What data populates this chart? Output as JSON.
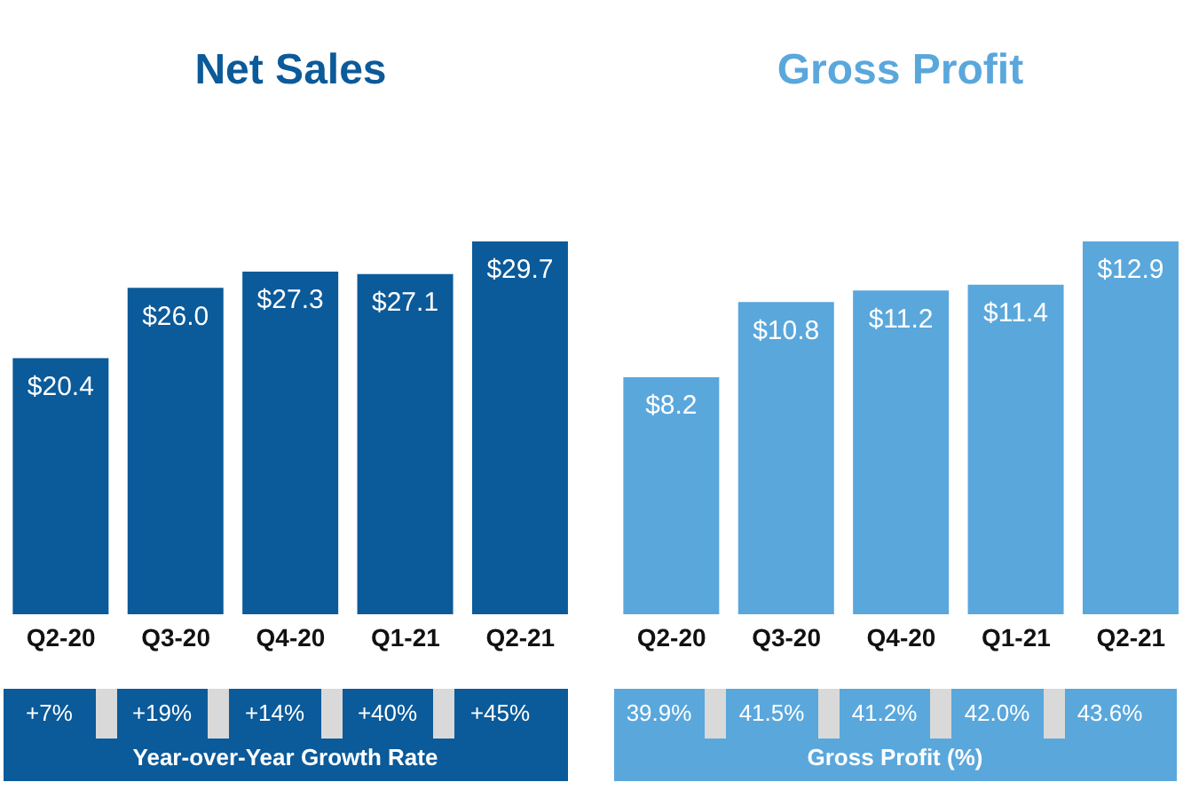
{
  "chart_data": [
    {
      "type": "bar",
      "title": "Net Sales",
      "categories": [
        "Q2-20",
        "Q3-20",
        "Q4-20",
        "Q1-21",
        "Q2-21"
      ],
      "values": [
        20.4,
        26.0,
        27.3,
        27.1,
        29.7
      ],
      "value_labels": [
        "$20.4",
        "$26.0",
        "$27.3",
        "$27.1",
        "$29.7"
      ],
      "color": "#0b5a9a",
      "annotations": [
        "+7%",
        "+19%",
        "+14%",
        "+40%",
        "+45%",
        "Year-over-Year Growth Rate"
      ]
    },
    {
      "type": "bar",
      "title": "Gross Profit",
      "categories": [
        "Q2-20",
        "Q3-20",
        "Q4-20",
        "Q1-21",
        "Q2-21"
      ],
      "values": [
        8.2,
        10.8,
        11.2,
        11.4,
        12.9
      ],
      "value_labels": [
        "$8.2",
        "$10.8",
        "$11.2",
        "$11.4",
        "$12.9"
      ],
      "color": "#5aa7dc",
      "annotations": [
        "39.9%",
        "41.5%",
        "41.2%",
        "42.0%",
        "43.6%",
        "Gross Profit (%)"
      ]
    }
  ]
}
